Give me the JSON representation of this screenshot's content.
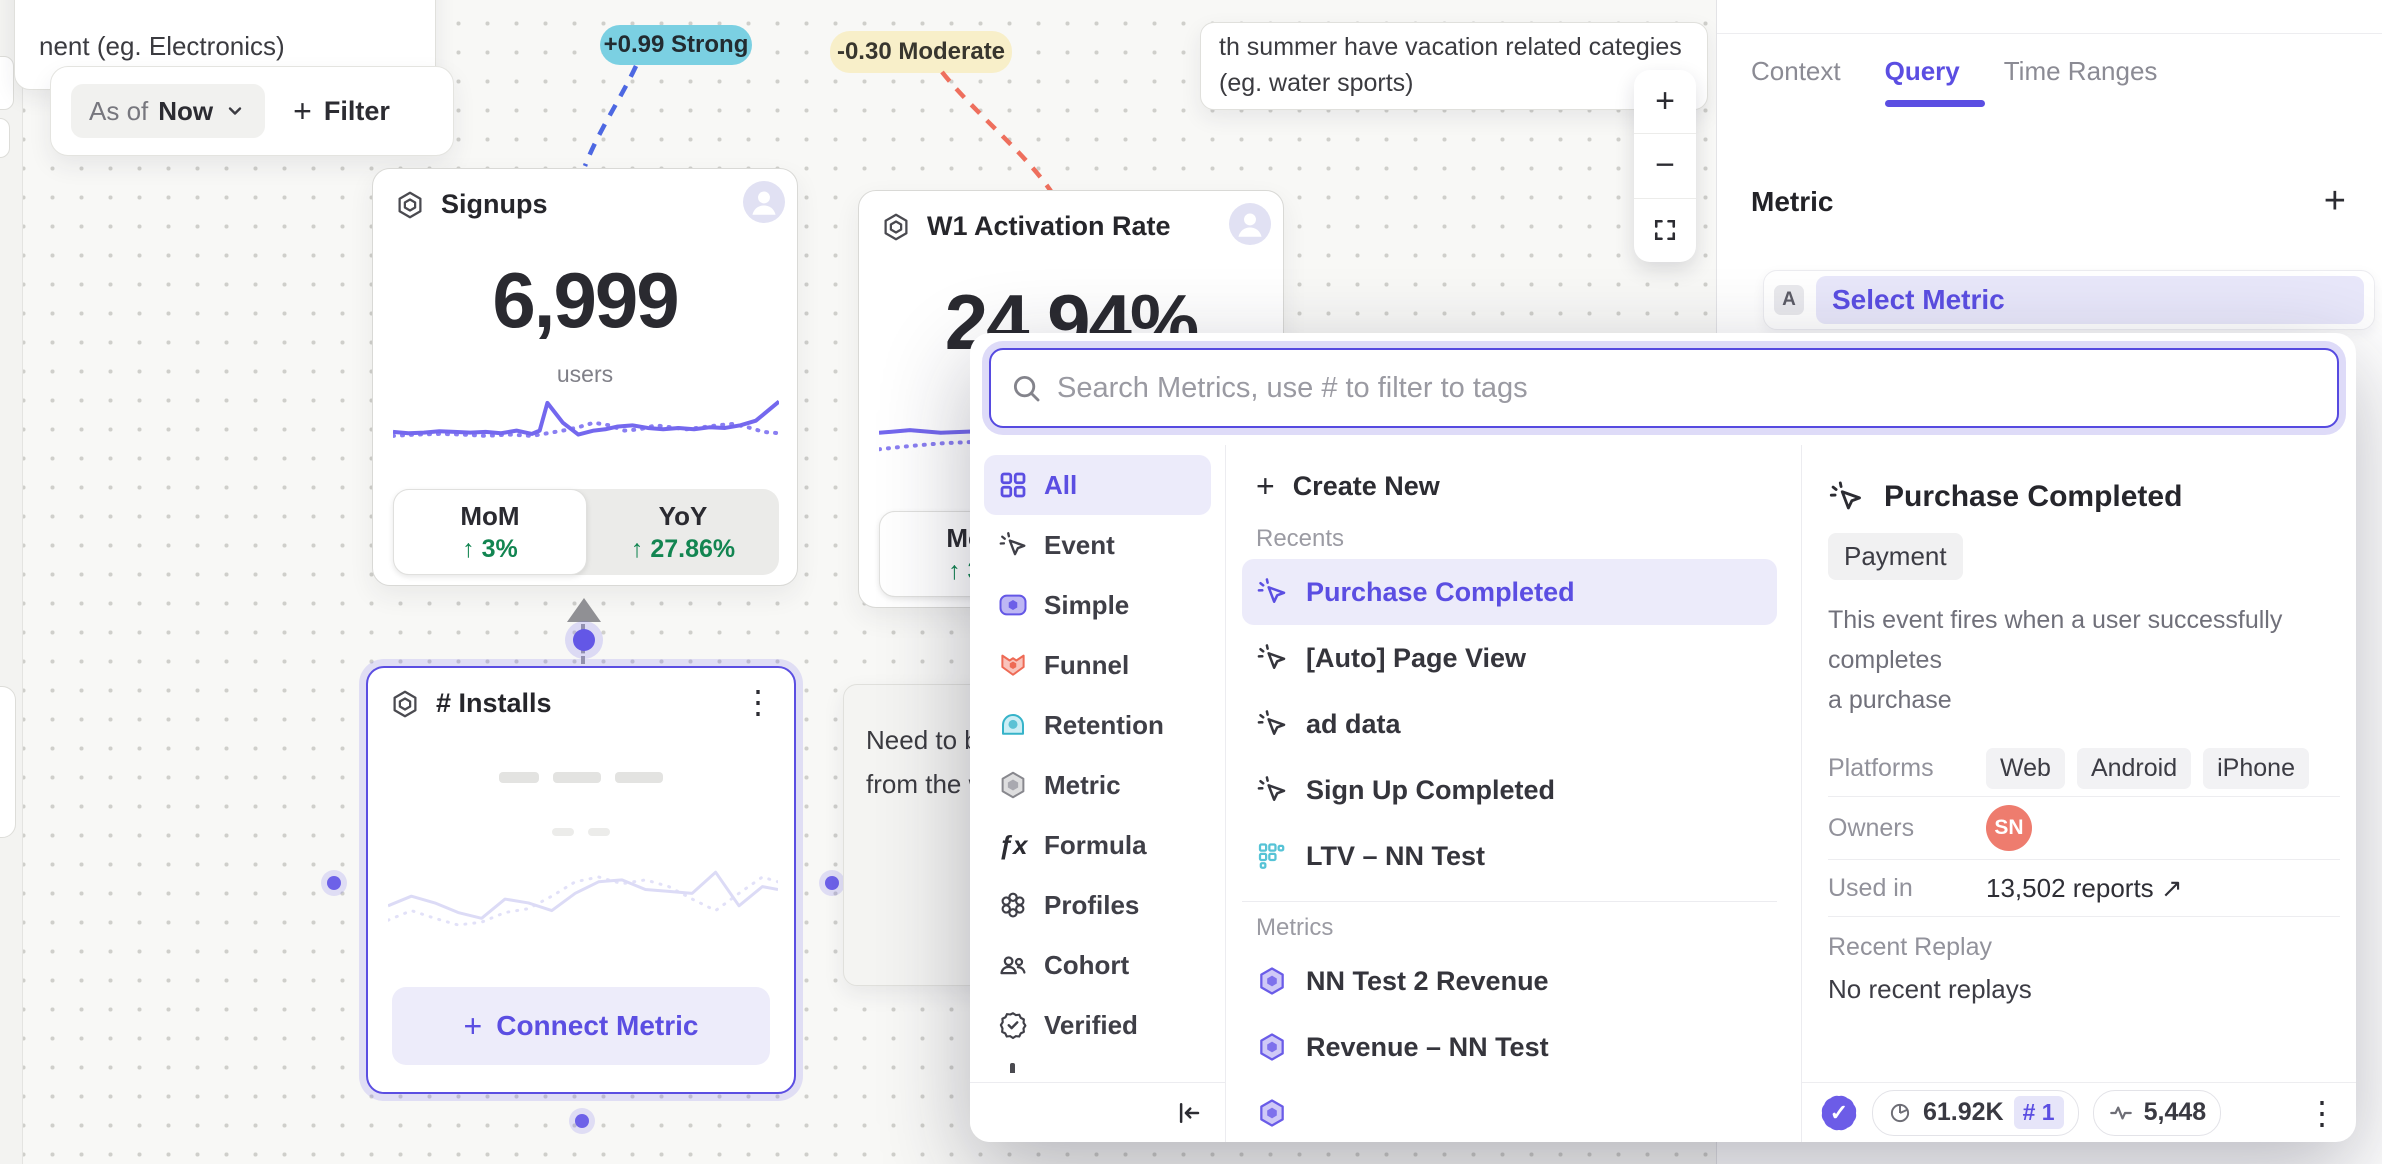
{
  "canvas": {
    "note_topleft": {
      "line": "nent  (eg. Electronics)"
    },
    "toolbar": {
      "as_of_label": "As of",
      "as_of_value": "Now",
      "plus": "+",
      "filter_label": "Filter"
    },
    "badges": {
      "strong": "+0.99 Strong",
      "moderate": "-0.30 Moderate"
    },
    "note_topright": {
      "line1": "th summer have vacation related categies",
      "line2": "(eg. water sports)"
    },
    "note_left_partial": {
      "line1": "Need to brin",
      "line2": "from the wa"
    },
    "zoom_controls": {
      "zoom_in": "+",
      "zoom_out": "−"
    },
    "cards": {
      "signups": {
        "title": "Signups",
        "value": "6,999",
        "unit": "users",
        "mom_label": "MoM",
        "mom_delta": "↑ 3%",
        "yoy_label": "YoY",
        "yoy_delta": "↑ 27.86%",
        "chart": {
          "solid": [
            [
              0,
              62
            ],
            [
              4,
              64
            ],
            [
              8,
              63
            ],
            [
              12,
              61
            ],
            [
              16,
              62
            ],
            [
              20,
              63
            ],
            [
              24,
              62
            ],
            [
              28,
              64
            ],
            [
              32,
              60
            ],
            [
              36,
              65
            ],
            [
              38,
              60
            ],
            [
              40,
              18
            ],
            [
              44,
              48
            ],
            [
              48,
              66
            ],
            [
              52,
              60
            ],
            [
              55,
              58
            ],
            [
              58,
              54
            ],
            [
              62,
              52
            ],
            [
              66,
              56
            ],
            [
              70,
              58
            ],
            [
              74,
              56
            ],
            [
              78,
              58
            ],
            [
              82,
              55
            ],
            [
              86,
              56
            ],
            [
              90,
              52
            ],
            [
              94,
              45
            ],
            [
              100,
              16
            ]
          ],
          "dotted": [
            [
              0,
              68
            ],
            [
              6,
              66
            ],
            [
              12,
              65
            ],
            [
              18,
              66
            ],
            [
              24,
              68
            ],
            [
              30,
              66
            ],
            [
              36,
              68
            ],
            [
              40,
              64
            ],
            [
              44,
              60
            ],
            [
              48,
              55
            ],
            [
              52,
              48
            ],
            [
              56,
              52
            ],
            [
              60,
              60
            ],
            [
              64,
              58
            ],
            [
              68,
              52
            ],
            [
              72,
              55
            ],
            [
              76,
              58
            ],
            [
              80,
              55
            ],
            [
              84,
              52
            ],
            [
              88,
              50
            ],
            [
              92,
              55
            ],
            [
              96,
              62
            ],
            [
              100,
              64
            ]
          ]
        }
      },
      "w1": {
        "title": "W1 Activation Rate",
        "value": "24.94%",
        "unit": "",
        "mom_label": "MoM",
        "mom_delta": "↑ 3%",
        "yoy_label": "YoY",
        "yoy_delta": "",
        "chart": {
          "solid": [
            [
              0,
              30
            ],
            [
              8,
              26
            ],
            [
              16,
              30
            ],
            [
              24,
              28
            ],
            [
              32,
              34
            ],
            [
              40,
              40
            ],
            [
              48,
              52
            ],
            [
              56,
              60
            ],
            [
              64,
              65
            ],
            [
              72,
              70
            ],
            [
              80,
              75
            ],
            [
              88,
              80
            ],
            [
              100,
              85
            ]
          ],
          "dotted": [
            [
              0,
              55
            ],
            [
              8,
              50
            ],
            [
              16,
              46
            ],
            [
              24,
              44
            ],
            [
              32,
              42
            ],
            [
              40,
              46
            ],
            [
              48,
              55
            ],
            [
              56,
              65
            ],
            [
              64,
              70
            ],
            [
              72,
              75
            ],
            [
              80,
              78
            ],
            [
              88,
              83
            ],
            [
              100,
              88
            ]
          ]
        }
      },
      "installs": {
        "title": "# Installs",
        "kebab": "⋮",
        "connect_plus": "+",
        "connect_label": "Connect Metric",
        "chart": {
          "solid": [
            [
              0,
              55
            ],
            [
              6,
              45
            ],
            [
              12,
              52
            ],
            [
              18,
              62
            ],
            [
              24,
              68
            ],
            [
              30,
              48
            ],
            [
              36,
              52
            ],
            [
              42,
              60
            ],
            [
              48,
              42
            ],
            [
              54,
              30
            ],
            [
              60,
              28
            ],
            [
              66,
              38
            ],
            [
              72,
              40
            ],
            [
              78,
              42
            ],
            [
              84,
              20
            ],
            [
              90,
              55
            ],
            [
              96,
              35
            ],
            [
              100,
              38
            ]
          ],
          "dotted": [
            [
              0,
              70
            ],
            [
              6,
              60
            ],
            [
              12,
              68
            ],
            [
              18,
              75
            ],
            [
              24,
              72
            ],
            [
              30,
              62
            ],
            [
              36,
              58
            ],
            [
              42,
              45
            ],
            [
              48,
              30
            ],
            [
              54,
              25
            ],
            [
              60,
              32
            ],
            [
              66,
              28
            ],
            [
              72,
              35
            ],
            [
              78,
              48
            ],
            [
              84,
              60
            ],
            [
              90,
              42
            ],
            [
              96,
              25
            ],
            [
              100,
              30
            ]
          ]
        }
      }
    }
  },
  "panel": {
    "tabs": [
      {
        "label": "Context"
      },
      {
        "label": "Query"
      },
      {
        "label": "Time Ranges"
      }
    ],
    "metric_heading": "Metric",
    "plus": "+",
    "row_letter": "A",
    "row_label": "Select Metric"
  },
  "modal": {
    "search_placeholder": "Search Metrics, use # to filter to tags",
    "categories": [
      {
        "label": "All"
      },
      {
        "label": "Event"
      },
      {
        "label": "Simple"
      },
      {
        "label": "Funnel"
      },
      {
        "label": "Retention"
      },
      {
        "label": "Metric"
      },
      {
        "label": "Formula"
      },
      {
        "label": "Profiles"
      },
      {
        "label": "Cohort"
      },
      {
        "label": "Verified"
      }
    ],
    "create_new_plus": "+",
    "create_new": "Create New",
    "recents_label": "Recents",
    "recents": [
      {
        "label": "Purchase Completed"
      },
      {
        "label": "[Auto] Page View"
      },
      {
        "label": "ad data"
      },
      {
        "label": "Sign Up Completed"
      },
      {
        "label": "LTV – NN Test"
      }
    ],
    "metrics_label": "Metrics",
    "metrics": [
      {
        "label": "NN Test 2 Revenue"
      },
      {
        "label": "Revenue – NN Test"
      }
    ],
    "details": {
      "title": "Purchase Completed",
      "tag": "Payment",
      "desc_line1": "This event fires when a user successfully completes",
      "desc_line2": "a purchase",
      "platforms_label": "Platforms",
      "platforms": [
        "Web",
        "Android",
        "iPhone"
      ],
      "owners_label": "Owners",
      "owner_initials": "SN",
      "used_in_label": "Used in",
      "used_in_value": "13,502 reports ↗",
      "recent_replay_label": "Recent Replay",
      "recent_replay_value": "No recent replays",
      "footer": {
        "stat_k": "61.92K",
        "rank": "# 1",
        "stat_events": "5,448",
        "check": "✓",
        "kebab": "⋮"
      }
    }
  }
}
